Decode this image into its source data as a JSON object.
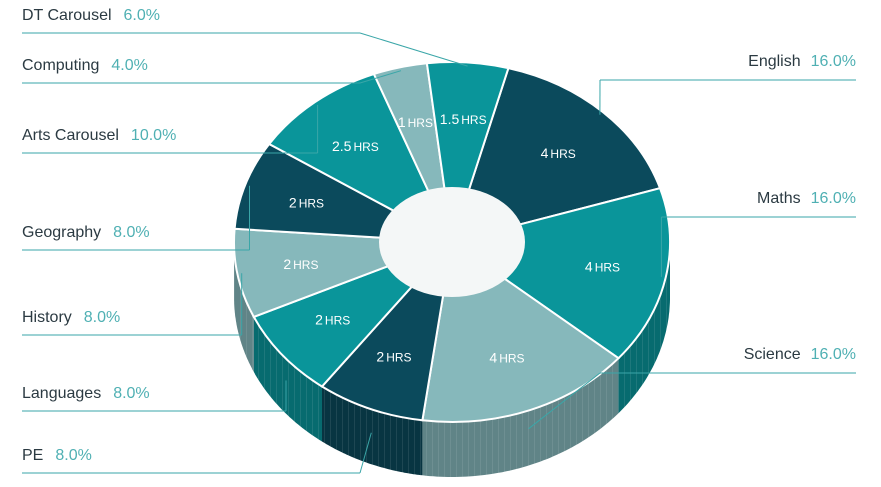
{
  "chart_data": {
    "type": "pie",
    "style": "3d-donut",
    "legend_placement": "left and right callouts",
    "unit_label": "HRS",
    "slices": [
      {
        "name": "English",
        "percent": "16.0%",
        "hours": "4",
        "value": 16.0,
        "color": "#0b4a5c",
        "side": "right"
      },
      {
        "name": "Maths",
        "percent": "16.0%",
        "hours": "4",
        "value": 16.0,
        "color": "#0a959a",
        "side": "right"
      },
      {
        "name": "Science",
        "percent": "16.0%",
        "hours": "4",
        "value": 16.0,
        "color": "#86b8bb",
        "side": "right"
      },
      {
        "name": "PE",
        "percent": "8.0%",
        "hours": "2",
        "value": 8.0,
        "color": "#0b4a5c",
        "side": "left"
      },
      {
        "name": "Languages",
        "percent": "8.0%",
        "hours": "2",
        "value": 8.0,
        "color": "#0a959a",
        "side": "left"
      },
      {
        "name": "History",
        "percent": "8.0%",
        "hours": "2",
        "value": 8.0,
        "color": "#86b8bb",
        "side": "left"
      },
      {
        "name": "Geography",
        "percent": "8.0%",
        "hours": "2",
        "value": 8.0,
        "color": "#0b4a5c",
        "side": "left"
      },
      {
        "name": "Arts Carousel",
        "percent": "10.0%",
        "hours": "2.5",
        "value": 10.0,
        "color": "#0a959a",
        "side": "left"
      },
      {
        "name": "Computing",
        "percent": "4.0%",
        "hours": "1",
        "value": 4.0,
        "color": "#86b8bb",
        "side": "left"
      },
      {
        "name": "DT Carousel",
        "percent": "6.0%",
        "hours": "1.5",
        "value": 6.0,
        "color": "#0a959a",
        "side": "left"
      }
    ]
  }
}
